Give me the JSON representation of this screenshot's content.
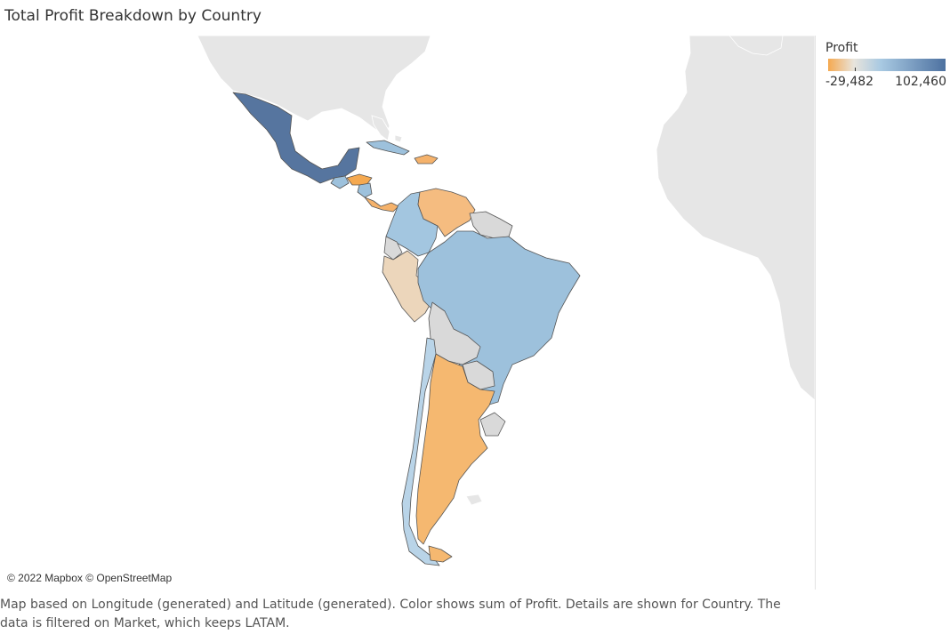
{
  "title": "Total Profit Breakdown by Country",
  "legend": {
    "title": "Profit",
    "min_label": "-29,482",
    "max_label": "102,460",
    "min_value": -29482,
    "max_value": 102460,
    "colors": {
      "low": "#f5a950",
      "mid": "#e8e4dc",
      "high": "#4d71a0"
    }
  },
  "map": {
    "attribution": "© 2022 Mapbox © OpenStreetMap",
    "base_land_color": "#e6e6e6",
    "no_data_color": "#d9d9d9"
  },
  "caption": "Map based on Longitude (generated) and Latitude (generated).  Color shows sum of Profit.  Details are shown for Country. The data is filtered on Market, which keeps LATAM.",
  "countries": {
    "mexico": {
      "color": "#56759f"
    },
    "cuba": {
      "color": "#9dc1dc"
    },
    "haiti_dr": {
      "color": "#f5b26b"
    },
    "guatemala": {
      "color": "#9dc1dc"
    },
    "honduras": {
      "color": "#f5a950"
    },
    "nicaragua": {
      "color": "#9dc1dc"
    },
    "costa_rica_panama": {
      "color": "#f5b26b"
    },
    "colombia": {
      "color": "#a3c6e0"
    },
    "venezuela": {
      "color": "#f5bc80"
    },
    "guianas": {
      "color": "#d9d9d9"
    },
    "ecuador": {
      "color": "#d9d9d9"
    },
    "peru": {
      "color": "#ecd6bb"
    },
    "brazil": {
      "color": "#9dc1dc"
    },
    "bolivia": {
      "color": "#d9d9d9"
    },
    "paraguay": {
      "color": "#d9d9d9"
    },
    "chile": {
      "color": "#b9d4e8"
    },
    "argentina": {
      "color": "#f5b870"
    },
    "uruguay": {
      "color": "#d9d9d9"
    },
    "tierra_del_fuego": {
      "color": "#f5b870"
    }
  }
}
